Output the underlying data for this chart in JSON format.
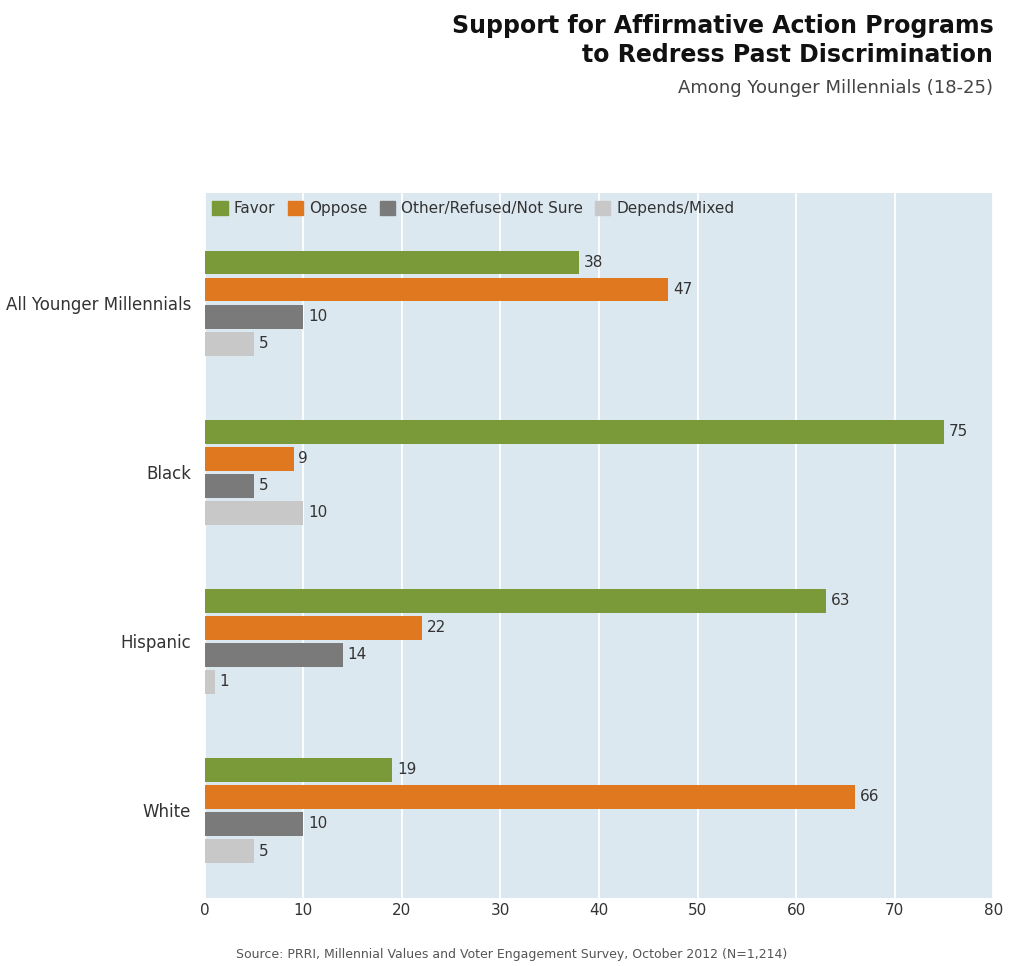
{
  "title_line1": "Support for Affirmative Action Programs",
  "title_line2": "to Redress Past Discrimination",
  "subtitle": "Among Younger Millennials (18-25)",
  "source": "Source: PRRI, Millennial Values and Voter Engagement Survey, October 2012 (N=1,214)",
  "categories": [
    "All Younger Millennials",
    "Black",
    "Hispanic",
    "White"
  ],
  "series": {
    "Favor": [
      38,
      75,
      63,
      19
    ],
    "Oppose": [
      47,
      9,
      22,
      66
    ],
    "Other/Refused/Not Sure": [
      10,
      5,
      14,
      10
    ],
    "Depends/Mixed": [
      5,
      10,
      1,
      5
    ]
  },
  "colors": {
    "Favor": "#7a9a3a",
    "Oppose": "#e07820",
    "Other/Refused/Not Sure": "#7a7a7a",
    "Depends/Mixed": "#c8c8c8"
  },
  "xlim": [
    0,
    80
  ],
  "xticks": [
    0,
    10,
    20,
    30,
    40,
    50,
    60,
    70,
    80
  ],
  "bar_height": 0.16,
  "background_color": "#dce8f0",
  "title_bg_color": "#ffffff",
  "title_fontsize": 17,
  "subtitle_fontsize": 13,
  "label_fontsize": 11,
  "tick_fontsize": 11,
  "source_fontsize": 9,
  "legend_fontsize": 11,
  "series_order": [
    "Favor",
    "Oppose",
    "Other/Refused/Not Sure",
    "Depends/Mixed"
  ]
}
